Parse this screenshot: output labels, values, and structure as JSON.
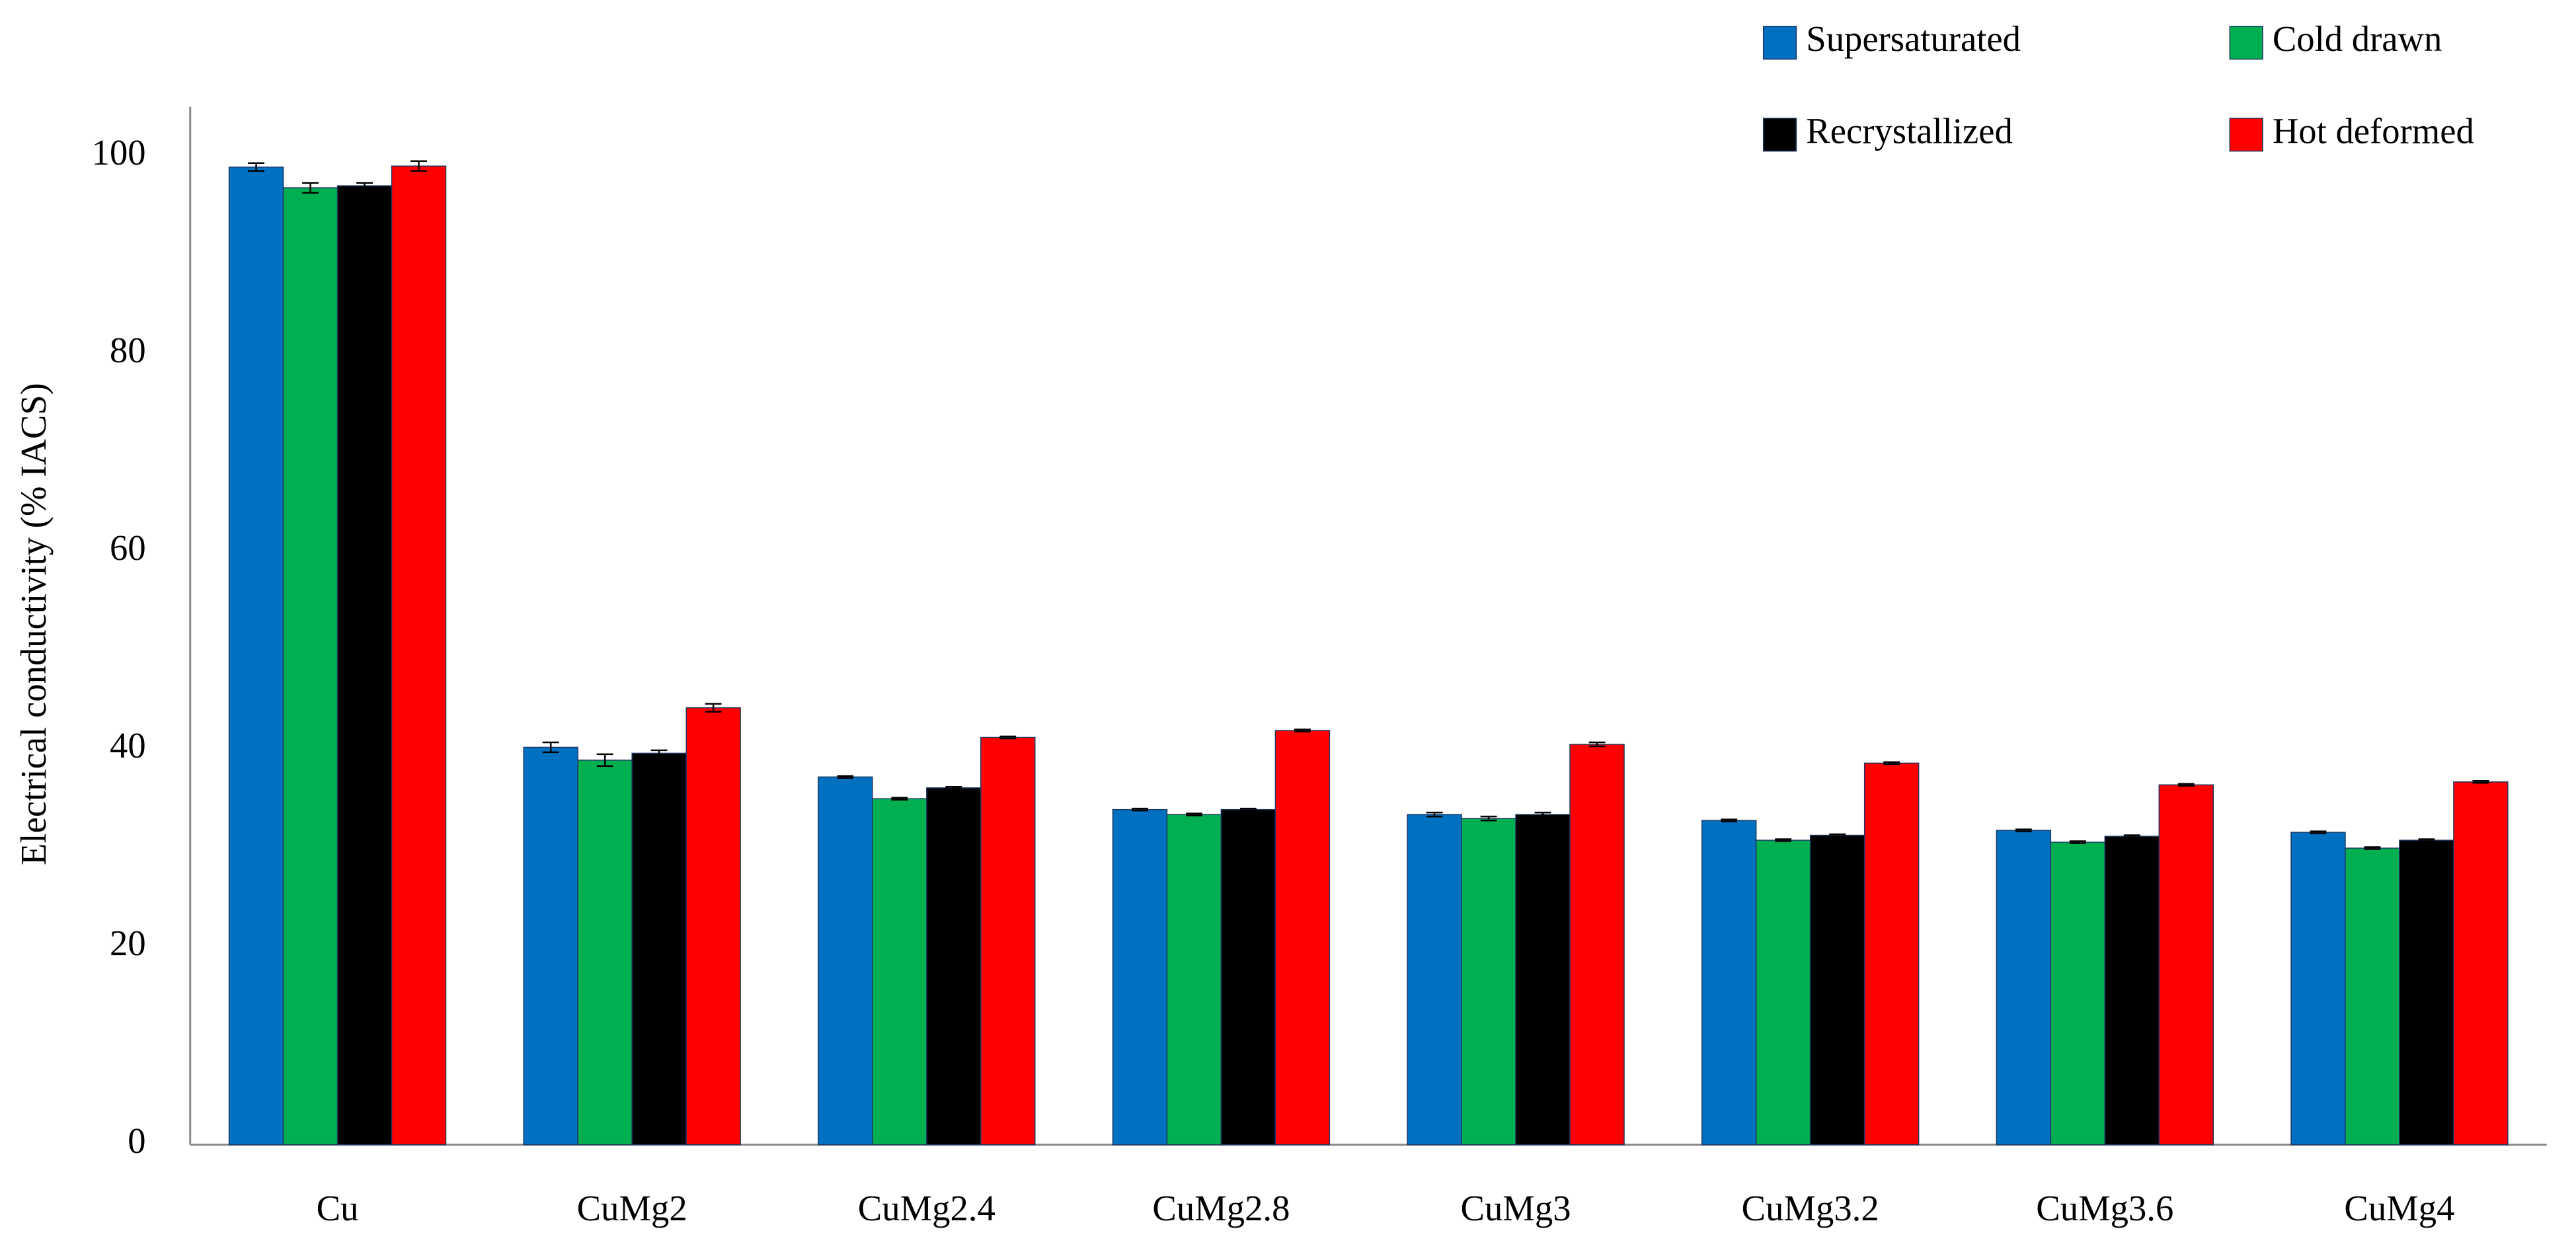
{
  "chart_data": {
    "type": "bar",
    "y_label": "Electrical conductivity (% IACS)",
    "categories": [
      "Cu",
      "CuMg2",
      "CuMg2.4",
      "CuMg2.8",
      "CuMg3",
      "CuMg3.2",
      "CuMg3.6",
      "CuMg4"
    ],
    "series": [
      {
        "name": "Supersaturated",
        "color": "#0070c0",
        "values": [
          98.9,
          40.2,
          37.2,
          33.9,
          33.4,
          32.8,
          31.8,
          31.6
        ],
        "errors": [
          0.4,
          0.5,
          0.1,
          0.1,
          0.2,
          0.1,
          0.1,
          0.1
        ]
      },
      {
        "name": "Cold drawn",
        "color": "#00b050",
        "values": [
          96.8,
          38.9,
          35.0,
          33.4,
          33.0,
          30.8,
          30.6,
          30.0
        ],
        "errors": [
          0.5,
          0.6,
          0.1,
          0.1,
          0.2,
          0.1,
          0.1,
          0.1
        ]
      },
      {
        "name": "Recrystallized",
        "color": "#000000",
        "values": [
          97.0,
          39.6,
          36.1,
          33.9,
          33.4,
          31.3,
          31.2,
          30.8
        ],
        "errors": [
          0.3,
          0.3,
          0.1,
          0.1,
          0.2,
          0.1,
          0.1,
          0.1
        ]
      },
      {
        "name": "Hot deformed",
        "color": "#ff0000",
        "values": [
          99.0,
          44.2,
          41.2,
          41.9,
          40.5,
          38.6,
          36.4,
          36.7
        ],
        "errors": [
          0.5,
          0.4,
          0.1,
          0.1,
          0.2,
          0.1,
          0.1,
          0.1
        ]
      }
    ],
    "ylim": [
      0,
      105
    ],
    "yticks": [
      0,
      20,
      40,
      60,
      80,
      100
    ],
    "grid": false,
    "legend": "top-right"
  }
}
